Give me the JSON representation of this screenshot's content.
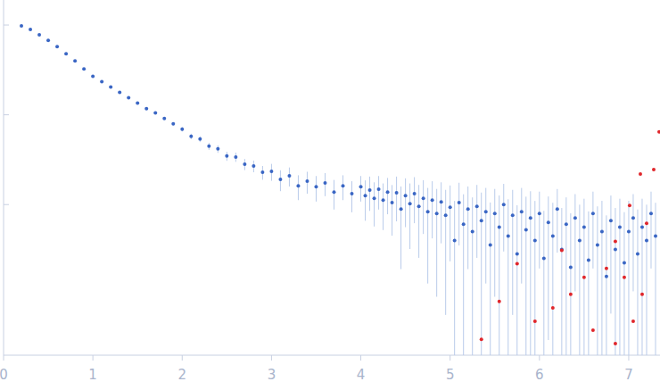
{
  "chart_data": {
    "type": "scatter",
    "log": "y",
    "tick_labels": "x",
    "grid": false,
    "marker": "circle",
    "xlim": [
      0,
      7.35
    ],
    "ylim": [
      0.00021,
      1.9
    ],
    "xticks": [
      0,
      1,
      2,
      3,
      4,
      5,
      6,
      7
    ],
    "yticks": [
      0.01,
      0.1,
      1
    ],
    "series": [
      {
        "color": "#3a66c4",
        "x": [
          0.2,
          0.3,
          0.4,
          0.5,
          0.6,
          0.7,
          0.8,
          0.9,
          1.0,
          1.1,
          1.2,
          1.3,
          1.4,
          1.5,
          1.6,
          1.7,
          1.8,
          1.9,
          2.0,
          2.1,
          2.2,
          2.3,
          2.4,
          2.5,
          2.6,
          2.7,
          2.8,
          2.9,
          3.0,
          3.1,
          3.2,
          3.3,
          3.4,
          3.5,
          3.6,
          3.7,
          3.8,
          3.9,
          4.0,
          4.05,
          4.1,
          4.15,
          4.2,
          4.25,
          4.3,
          4.35,
          4.4,
          4.45,
          4.5,
          4.55,
          4.6,
          4.65,
          4.7,
          4.75,
          4.8,
          4.85,
          4.9,
          4.95,
          5.0,
          5.05,
          5.1,
          5.15,
          5.2,
          5.25,
          5.3,
          5.35,
          5.4,
          5.45,
          5.5,
          5.55,
          5.6,
          5.65,
          5.7,
          5.75,
          5.8,
          5.85,
          5.9,
          5.95,
          6.0,
          6.05,
          6.1,
          6.15,
          6.2,
          6.25,
          6.3,
          6.35,
          6.4,
          6.45,
          6.5,
          6.55,
          6.6,
          6.65,
          6.7,
          6.75,
          6.8,
          6.85,
          6.9,
          6.95,
          7.0,
          7.05,
          7.1,
          7.15,
          7.2,
          7.25,
          7.3
        ],
        "values": [
          0.977,
          0.891,
          0.776,
          0.676,
          0.575,
          0.479,
          0.398,
          0.324,
          0.269,
          0.234,
          0.204,
          0.178,
          0.155,
          0.135,
          0.117,
          0.105,
          0.0912,
          0.0794,
          0.0692,
          0.0575,
          0.0537,
          0.0447,
          0.0417,
          0.0347,
          0.0339,
          0.0282,
          0.0269,
          0.0229,
          0.0234,
          0.0191,
          0.0209,
          0.0162,
          0.0182,
          0.0158,
          0.0174,
          0.0138,
          0.0162,
          0.0132,
          0.0158,
          0.0126,
          0.0145,
          0.0117,
          0.0148,
          0.0112,
          0.0138,
          0.0105,
          0.0135,
          0.00891,
          0.0126,
          0.0102,
          0.0132,
          0.00955,
          0.0117,
          0.00832,
          0.0112,
          0.00794,
          0.0107,
          0.00759,
          0.00933,
          0.00398,
          0.0105,
          0.00603,
          0.00891,
          0.00501,
          0.00955,
          0.00661,
          0.00832,
          0.00355,
          0.00794,
          0.00562,
          0.01,
          0.00447,
          0.00759,
          0.00282,
          0.00832,
          0.00525,
          0.00708,
          0.00398,
          0.00794,
          0.00251,
          0.00631,
          0.00447,
          0.00891,
          0.00316,
          0.00603,
          0.002,
          0.00708,
          0.00398,
          0.00562,
          0.0024,
          0.00794,
          0.00355,
          0.00501,
          0.00158,
          0.00661,
          0.00316,
          0.00562,
          0.00224,
          0.00501,
          0.00708,
          0.00282,
          0.00562,
          0.00398,
          0.00794,
          0.00447
        ],
        "errors": [
          0.01,
          0.009,
          0.008,
          0.007,
          0.006,
          0.005,
          0.004,
          0.004,
          0.003,
          0.003,
          0.003,
          0.003,
          0.003,
          0.003,
          0.003,
          0.003,
          0.003,
          0.003,
          0.004,
          0.004,
          0.004,
          0.004,
          0.004,
          0.004,
          0.004,
          0.004,
          0.004,
          0.004,
          0.005,
          0.005,
          0.005,
          0.005,
          0.005,
          0.005,
          0.005,
          0.005,
          0.005,
          0.005,
          0.005,
          0.006,
          0.006,
          0.006,
          0.006,
          0.006,
          0.006,
          0.006,
          0.007,
          0.007,
          0.007,
          0.007,
          0.007,
          0.007,
          0.007,
          0.007,
          0.007,
          0.007,
          0.007,
          0.007,
          0.007,
          0.007,
          0.007,
          0.007,
          0.007,
          0.007,
          0.007,
          0.007,
          0.007,
          0.007,
          0.007,
          0.007,
          0.007,
          0.007,
          0.007,
          0.007,
          0.007,
          0.007,
          0.007,
          0.007,
          0.006,
          0.006,
          0.006,
          0.006,
          0.006,
          0.006,
          0.006,
          0.006,
          0.006,
          0.006,
          0.006,
          0.006,
          0.006,
          0.006,
          0.006,
          0.006,
          0.006,
          0.006,
          0.006,
          0.006,
          0.006,
          0.006,
          0.006,
          0.006,
          0.006,
          0.006,
          0.006
        ]
      },
      {
        "color": "#e0262b",
        "x": [
          7.34,
          7.28,
          7.13,
          7.01,
          6.85,
          6.75,
          6.95,
          7.15,
          6.85,
          6.5,
          6.35,
          6.15,
          5.95,
          5.75,
          5.55,
          5.35,
          7.05,
          6.6,
          7.2,
          6.25
        ],
        "values": [
          0.0646,
          0.0245,
          0.0219,
          0.00977,
          0.00389,
          0.00195,
          0.00155,
          0.001,
          0.000282,
          0.00155,
          0.001,
          0.000708,
          0.0005,
          0.00219,
          0.000832,
          0.000316,
          0.0005,
          0.000398,
          0.00617,
          0.00309
        ]
      }
    ]
  }
}
